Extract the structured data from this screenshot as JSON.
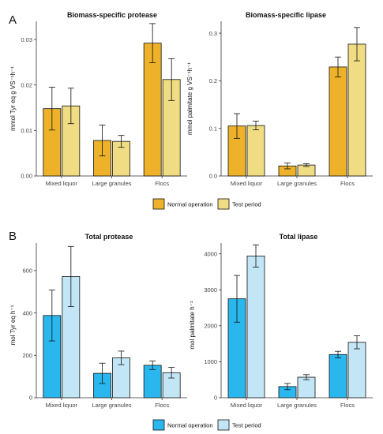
{
  "panel_labels": [
    "A",
    "B"
  ],
  "legends": [
    {
      "items": [
        {
          "label": "Normal operation",
          "color": "#EDB22A"
        },
        {
          "label": "Test period",
          "color": "#F0DC82"
        }
      ]
    },
    {
      "items": [
        {
          "label": "Normal operation",
          "color": "#29B7EE"
        },
        {
          "label": "Test period",
          "color": "#C3E6F6"
        }
      ]
    }
  ],
  "chart_data": [
    {
      "type": "bar",
      "title": "Biomass-specific protease",
      "ylabel": "mmol Tyr eq g VS⁻¹h⁻¹",
      "categories": [
        "Mixed liquor",
        "Large granules",
        "Flocs"
      ],
      "ylim": [
        0,
        0.034
      ],
      "yticks": [
        0.0,
        0.01,
        0.02,
        0.03
      ],
      "ytick_labels": [
        "0.00",
        "0.01",
        "0.02",
        "0.03"
      ],
      "series": [
        {
          "name": "Normal operation",
          "color": "#EDB22A",
          "values": [
            0.0148,
            0.0078,
            0.0292
          ],
          "errors": [
            0.0047,
            0.0034,
            0.0043
          ]
        },
        {
          "name": "Test period",
          "color": "#F0DC82",
          "values": [
            0.0154,
            0.0076,
            0.0212
          ],
          "errors": [
            0.0039,
            0.0013,
            0.0046
          ]
        }
      ]
    },
    {
      "type": "bar",
      "title": "Biomass-specific lipase",
      "ylabel": "mmol palmitate g VS⁻¹h⁻¹",
      "categories": [
        "Mixed liquor",
        "Large granules",
        "Flocs"
      ],
      "ylim": [
        0,
        0.325
      ],
      "yticks": [
        0.0,
        0.1,
        0.2,
        0.3
      ],
      "ytick_labels": [
        "0.0",
        "0.1",
        "0.2",
        "0.3"
      ],
      "series": [
        {
          "name": "Normal operation",
          "color": "#EDB22A",
          "values": [
            0.105,
            0.021,
            0.229
          ],
          "errors": [
            0.026,
            0.006,
            0.021
          ]
        },
        {
          "name": "Test period",
          "color": "#F0DC82",
          "values": [
            0.106,
            0.023,
            0.277
          ],
          "errors": [
            0.009,
            0.003,
            0.035
          ]
        }
      ]
    },
    {
      "type": "bar",
      "title": "Total protease",
      "ylabel": "mol Tyr eq h⁻¹",
      "categories": [
        "Mixed liquor",
        "Large granules",
        "Flocs"
      ],
      "ylim": [
        0,
        730
      ],
      "yticks": [
        0,
        200,
        400,
        600
      ],
      "ytick_labels": [
        "0",
        "200",
        "400",
        "600"
      ],
      "series": [
        {
          "name": "Normal operation",
          "color": "#29B7EE",
          "values": [
            388,
            115,
            153
          ],
          "errors": [
            120,
            48,
            20
          ]
        },
        {
          "name": "Test period",
          "color": "#C3E6F6",
          "values": [
            572,
            188,
            118
          ],
          "errors": [
            142,
            32,
            25
          ]
        }
      ]
    },
    {
      "type": "bar",
      "title": "Total lipase",
      "ylabel": "mol palmitate h⁻¹",
      "categories": [
        "Mixed liquor",
        "Large granules",
        "Flocs"
      ],
      "ylim": [
        0,
        4300
      ],
      "yticks": [
        0,
        1000,
        2000,
        3000,
        4000
      ],
      "ytick_labels": [
        "0",
        "1000",
        "2000",
        "3000",
        "4000"
      ],
      "series": [
        {
          "name": "Normal operation",
          "color": "#29B7EE",
          "values": [
            2750,
            310,
            1200
          ],
          "errors": [
            650,
            85,
            90
          ]
        },
        {
          "name": "Test period",
          "color": "#C3E6F6",
          "values": [
            3940,
            570,
            1540
          ],
          "errors": [
            310,
            70,
            180
          ]
        }
      ]
    }
  ]
}
